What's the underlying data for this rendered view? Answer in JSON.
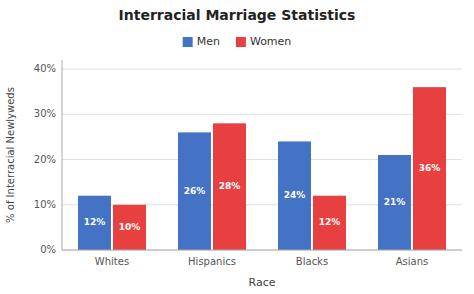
{
  "chart_data": {
    "type": "bar",
    "title": "Interracial Marriage Statistics",
    "xlabel": "Race",
    "ylabel": "% of Interracial Newlyweds",
    "categories": [
      "Whites",
      "Hispanics",
      "Blacks",
      "Asians"
    ],
    "series": [
      {
        "name": "Men",
        "color": "#4472C4",
        "values": [
          12,
          26,
          24,
          21
        ],
        "value_labels": [
          "12%",
          "26%",
          "24%",
          "21%"
        ]
      },
      {
        "name": "Women",
        "color": "#E84040",
        "values": [
          10,
          28,
          12,
          36
        ],
        "value_labels": [
          "10%",
          "28%",
          "12%",
          "36%"
        ]
      }
    ],
    "ylim": [
      0,
      42
    ],
    "yticks": [
      {
        "value": 0,
        "label": "0%"
      },
      {
        "value": 10,
        "label": "10%"
      },
      {
        "value": 20,
        "label": "20%"
      },
      {
        "value": 30,
        "label": "30%"
      },
      {
        "value": 40,
        "label": "40%"
      }
    ],
    "grid": true,
    "legend": "top",
    "data_labels": true
  }
}
